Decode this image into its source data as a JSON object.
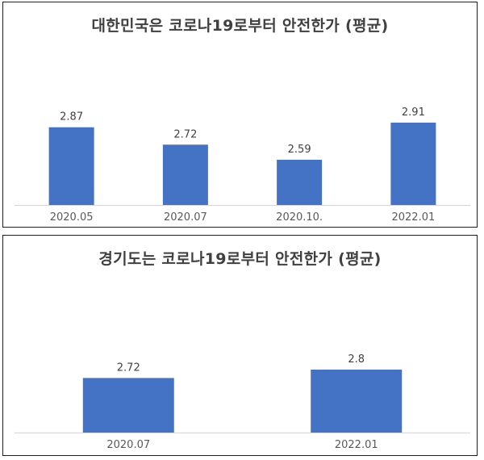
{
  "colors": {
    "bar": "#4472C4",
    "axis": "#d9d9d9",
    "border": "#1f1f1f"
  },
  "chart_data": [
    {
      "type": "bar",
      "title": "대한민국은 코로나19로부터 안전한가 (평균)",
      "categories": [
        "2020.05",
        "2020.07",
        "2020.10.",
        "2022.01"
      ],
      "values": [
        2.87,
        2.72,
        2.59,
        2.91
      ],
      "data_labels": [
        "2.87",
        "2.72",
        "2.59",
        "2.91"
      ],
      "xlabel": "",
      "ylabel": "",
      "ylim": [
        2.2,
        3.0
      ],
      "grid": false,
      "legend": "none"
    },
    {
      "type": "bar",
      "title": "경기도는 코로나19로부터 안전한가 (평균)",
      "categories": [
        "2020.07",
        "2022.01"
      ],
      "values": [
        2.72,
        2.8
      ],
      "data_labels": [
        "2.72",
        "2.8"
      ],
      "xlabel": "",
      "ylabel": "",
      "ylim": [
        2.2,
        3.0
      ],
      "grid": false,
      "legend": "none"
    }
  ]
}
